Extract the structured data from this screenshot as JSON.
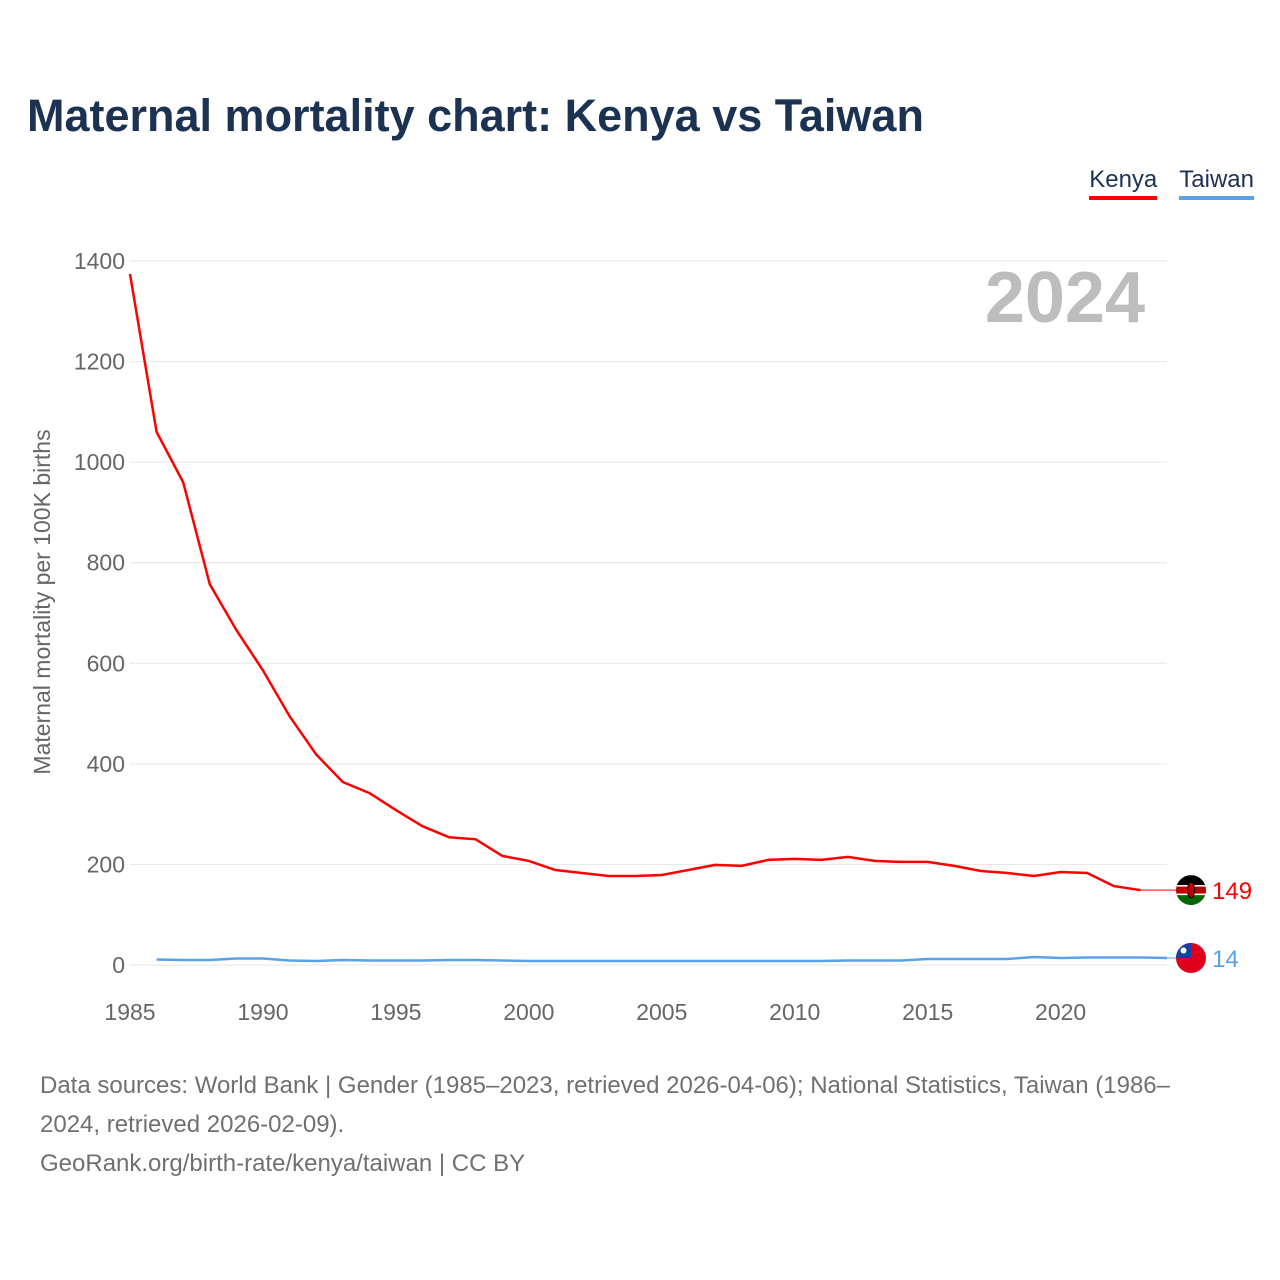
{
  "title": "Maternal mortality chart: Kenya vs Taiwan",
  "legend": [
    {
      "label": "Kenya",
      "color": "#ff0000"
    },
    {
      "label": "Taiwan",
      "color": "#5aa2e8"
    }
  ],
  "year_label": "2024",
  "sources": {
    "line1": "Data sources: World Bank | Gender (1985–2023, retrieved 2026-04-06); National Statistics, Taiwan (1986–2024, retrieved 2026-02-09).",
    "line2": "GeoRank.org/birth-rate/kenya/taiwan | CC BY"
  },
  "chart_data": {
    "type": "line",
    "title": "Maternal mortality chart: Kenya vs Taiwan",
    "xlabel": "",
    "ylabel": "Maternal mortality per 100K births",
    "xlim": [
      1985,
      2024
    ],
    "ylim": [
      0,
      1400
    ],
    "xticks": [
      "1985",
      "1990",
      "1995",
      "2000",
      "2005",
      "2010",
      "2015",
      "2020"
    ],
    "yticks": [
      "0",
      "200",
      "400",
      "600",
      "800",
      "1000",
      "1200",
      "1400"
    ],
    "grid": true,
    "legend_placement": "top-right",
    "series": [
      {
        "name": "Kenya",
        "color": "#ff0000",
        "end_label": "149",
        "x": [
          1985,
          1986,
          1987,
          1988,
          1989,
          1990,
          1991,
          1992,
          1993,
          1994,
          1995,
          1996,
          1997,
          1998,
          1999,
          2000,
          2001,
          2002,
          2003,
          2004,
          2005,
          2006,
          2007,
          2008,
          2009,
          2010,
          2011,
          2012,
          2013,
          2014,
          2015,
          2016,
          2017,
          2018,
          2019,
          2020,
          2021,
          2022,
          2023
        ],
        "y": [
          1374,
          1060,
          960,
          757,
          666,
          586,
          495,
          419,
          364,
          342,
          308,
          276,
          254,
          250,
          217,
          207,
          189,
          183,
          177,
          177,
          179,
          189,
          199,
          197,
          209,
          211,
          209,
          215,
          207,
          205,
          205,
          197,
          187,
          183,
          177,
          185,
          183,
          157,
          149
        ]
      },
      {
        "name": "Taiwan",
        "color": "#5aa2e8",
        "end_label": "14",
        "x": [
          1986,
          1987,
          1988,
          1989,
          1990,
          1991,
          1992,
          1993,
          1994,
          1995,
          1996,
          1997,
          1998,
          1999,
          2000,
          2001,
          2002,
          2003,
          2004,
          2005,
          2006,
          2007,
          2008,
          2009,
          2010,
          2011,
          2012,
          2013,
          2014,
          2015,
          2016,
          2017,
          2018,
          2019,
          2020,
          2021,
          2022,
          2023,
          2024
        ],
        "y": [
          11,
          10,
          10,
          13,
          13,
          9,
          8,
          10,
          9,
          9,
          9,
          10,
          10,
          9,
          8,
          8,
          8,
          8,
          8,
          8,
          8,
          8,
          8,
          8,
          8,
          8,
          9,
          9,
          9,
          12,
          12,
          12,
          12,
          16,
          14,
          15,
          15,
          15,
          14
        ]
      }
    ]
  }
}
